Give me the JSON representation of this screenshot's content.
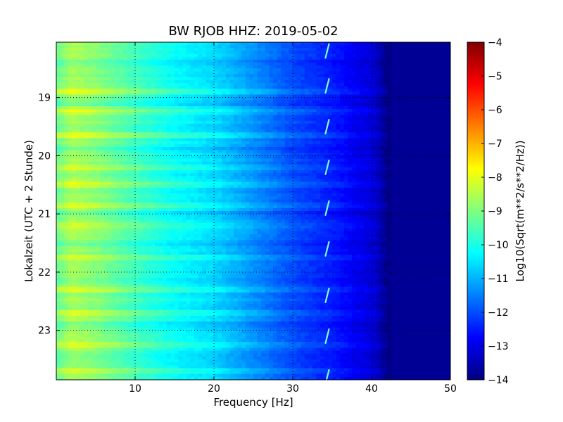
{
  "chart_data": {
    "type": "heatmap",
    "title": "BW RJOB HHZ: 2019-05-02",
    "xlabel": "Frequency [Hz]",
    "ylabel": "Lokalzeit (UTC + 2 Stunde)",
    "xlim": [
      0,
      50
    ],
    "ylim": [
      18.05,
      23.85
    ],
    "y_inverted": true,
    "x_ticks": [
      10,
      20,
      30,
      40,
      50
    ],
    "y_ticks": [
      19,
      20,
      21,
      22,
      23
    ],
    "grid": true,
    "colormap": "jet",
    "colorbar": {
      "label": "Log10(Sqrt(m**2/s**2/Hz))",
      "range": [
        -14,
        -4
      ],
      "ticks": [
        -4,
        -5,
        -6,
        -7,
        -8,
        -9,
        -10,
        -11,
        -12,
        -13,
        -14
      ]
    },
    "profile": {
      "frequency_hz": [
        0,
        2,
        5,
        10,
        15,
        20,
        25,
        30,
        33,
        36,
        38,
        40,
        42,
        50
      ],
      "level": [
        -9.2,
        -8.6,
        -8.9,
        -9.6,
        -10.2,
        -10.6,
        -11.3,
        -12.0,
        -12.3,
        -12.6,
        -12.9,
        -13.1,
        -13.8,
        -13.8
      ]
    },
    "features": {
      "spike_frequency_hz": 34.5,
      "spike_times": [
        18.2,
        18.8,
        19.5,
        20.2,
        20.9,
        21.6,
        22.4,
        23.1,
        23.8
      ],
      "bright_rows": [
        18.9,
        19.25,
        19.65,
        20.2,
        20.5,
        20.85,
        21.2,
        21.75,
        22.3,
        22.7,
        23.25,
        23.7
      ],
      "dark_rows": [
        18.4,
        19.1,
        19.9,
        21.0,
        21.5,
        22.15,
        22.9,
        23.45
      ]
    }
  }
}
